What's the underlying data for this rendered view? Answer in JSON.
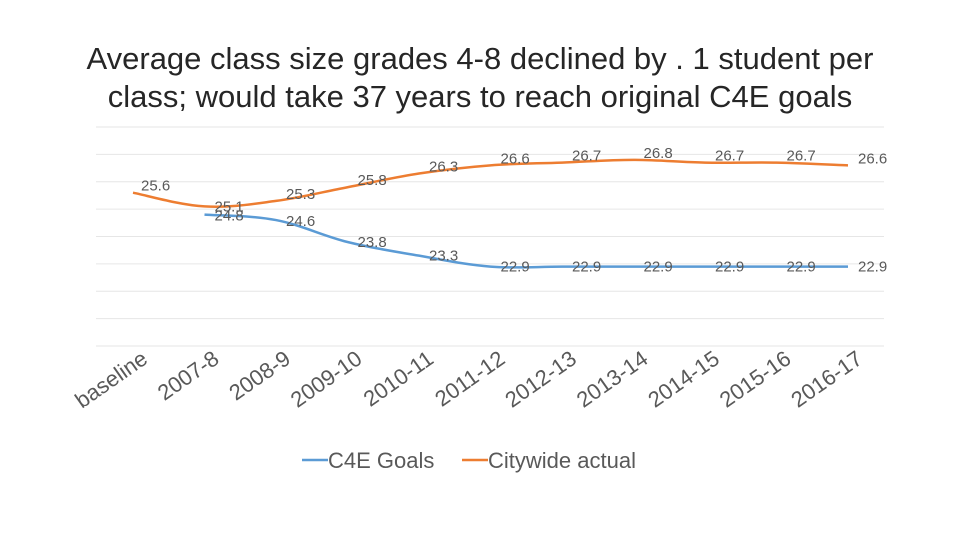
{
  "slide": {
    "title_line1": "Average class size grades 4-8 declined by . 1 student per",
    "title_line2": "class; would take 37 years to reach original C4E goals"
  },
  "chart_data": {
    "type": "line",
    "title": "Average class size grades 4-8 declined by . 1 student per class; would take 37 years to reach original C4E goals",
    "categories": [
      "baseline",
      "2007-8",
      "2008-9",
      "2009-10",
      "2010-11",
      "2011-12",
      "2012-13",
      "2013-14",
      "2014-15",
      "2015-16",
      "2016-17"
    ],
    "series": [
      {
        "name": "C4E Goals",
        "color": "#5b9bd5",
        "values": [
          null,
          24.8,
          24.6,
          23.8,
          23.3,
          22.9,
          22.9,
          22.9,
          22.9,
          22.9,
          22.9
        ],
        "labels": [
          "",
          "24.8",
          "24.6",
          "23.8",
          "23.3",
          "22.9",
          "22.9",
          "22.9",
          "22.9",
          "22.9",
          "22.9"
        ]
      },
      {
        "name": "Citywide actual",
        "color": "#ed7d31",
        "values": [
          25.6,
          25.1,
          25.3,
          25.8,
          26.3,
          26.6,
          26.7,
          26.8,
          26.7,
          26.7,
          26.6
        ],
        "labels": [
          "25.6",
          "25.1",
          "25.3",
          "25.8",
          "26.3",
          "26.6",
          "26.7",
          "26.8",
          "26.7",
          "26.7",
          "26.6"
        ]
      }
    ],
    "ylim": [
      20,
      28
    ],
    "grid": true,
    "legend": "bottom"
  }
}
